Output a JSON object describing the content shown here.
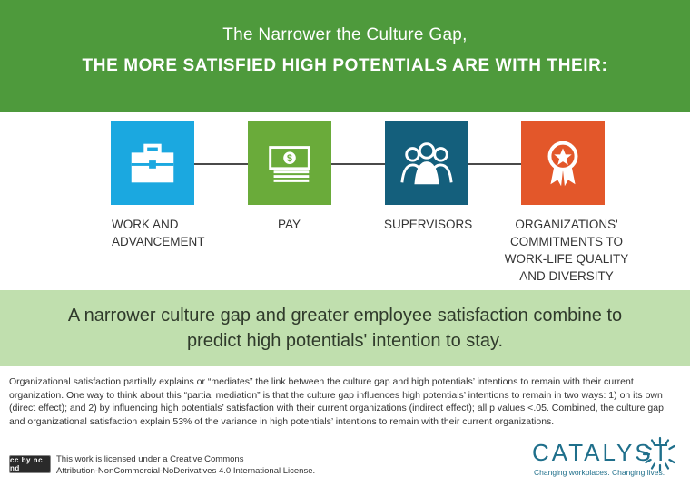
{
  "header": {
    "subtitle": "The Narrower the Culture Gap,",
    "title": "THE MORE SATISFIED HIGH POTENTIALS ARE WITH THEIR:"
  },
  "items": [
    {
      "label_line1": "WORK AND",
      "label_line2": "ADVANCEMENT",
      "icon": "briefcase-icon",
      "color": "#1ba8e0"
    },
    {
      "label_line1": "PAY",
      "icon": "money-icon",
      "color": "#6aab3a"
    },
    {
      "label_line1": "SUPERVISORS",
      "icon": "people-icon",
      "color": "#145f7c"
    },
    {
      "label_line1": "ORGANIZATIONS'",
      "label_line2": "COMMITMENTS TO",
      "label_line3": "WORK-LIFE QUALITY",
      "label_line4": "AND DIVERSITY",
      "icon": "award-ribbon-icon",
      "color": "#e3572a"
    }
  ],
  "band": {
    "line1": "A narrower culture gap and greater employee satisfaction combine to",
    "line2": "predict high potentials' intention to stay."
  },
  "note": "Organizational satisfaction partially explains or “mediates” the link between the culture gap and high potentials’ intentions to remain with their current organization. One way to think about this “partial mediation” is that the culture gap influences high potentials’ intentions to remain in two ways: 1) on its own (direct effect); and 2) by influencing high potentials’ satisfaction with their current organizations (indirect effect); all p values <.05. Combined, the culture gap and organizational satisfaction explain 53% of the variance in high potentials’ intentions to remain with their current organizations.",
  "license": {
    "badge": "cc by nc nd",
    "line1": "This work is licensed under a Creative Commons",
    "line2": "Attribution-NonCommercial-NoDerivatives 4.0 International License."
  },
  "logo": {
    "name": "CATALYST",
    "tagline": "Changing workplaces. Changing lives."
  }
}
